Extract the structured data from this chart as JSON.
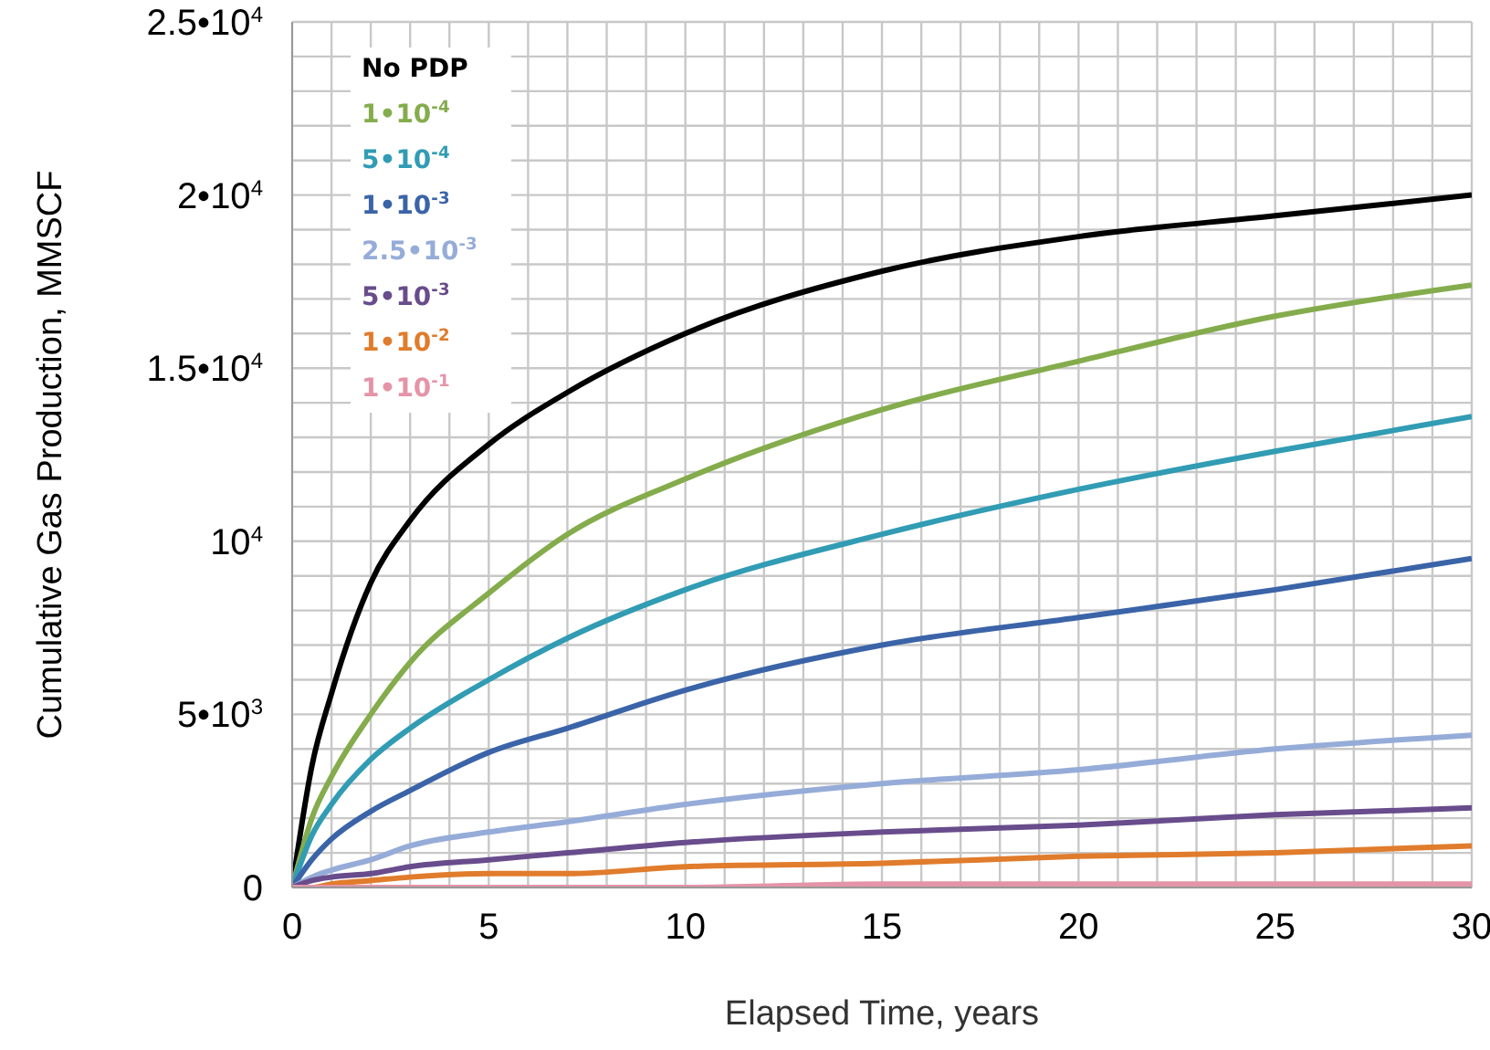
{
  "chart_data": {
    "type": "line",
    "xlabel": "Elapsed Time, years",
    "ylabel": "Cumulative Gas Production, MMSCF",
    "x": [
      0,
      0.5,
      1,
      2,
      3,
      5,
      7,
      10,
      15,
      20,
      25,
      30
    ],
    "series": [
      {
        "name": "No PDP",
        "color": "#000000",
        "values": [
          0,
          3500,
          5600,
          8800,
          10600,
          12800,
          14300,
          16000,
          17800,
          18800,
          19400,
          20000
        ]
      },
      {
        "name": "1•10$^{-4}$",
        "color": "#84ac4c",
        "values": [
          0,
          2000,
          3200,
          5000,
          6500,
          8500,
          10200,
          11800,
          13800,
          15200,
          16500,
          17400
        ]
      },
      {
        "name": "5•10$^{-4}$",
        "color": "#319cb4",
        "values": [
          0,
          1500,
          2400,
          3700,
          4600,
          6000,
          7200,
          8600,
          10200,
          11500,
          12600,
          13600
        ]
      },
      {
        "name": "1•10$^{-3}$",
        "color": "#3b64a8",
        "values": [
          0,
          800,
          1400,
          2200,
          2800,
          3900,
          4600,
          5700,
          7000,
          7800,
          8600,
          9500
        ]
      },
      {
        "name": "2.5•10$^{-3}$",
        "color": "#96acd8",
        "values": [
          0,
          300,
          500,
          800,
          1200,
          1600,
          1900,
          2400,
          3000,
          3400,
          4000,
          4400
        ]
      },
      {
        "name": "5•10$^{-3}$",
        "color": "#684c8c",
        "values": [
          0,
          200,
          300,
          400,
          600,
          800,
          1000,
          1300,
          1600,
          1800,
          2100,
          2300
        ]
      },
      {
        "name": "1•10$^{-2}$",
        "color": "#e07c2c",
        "values": [
          0,
          0,
          100,
          200,
          300,
          400,
          400,
          600,
          700,
          900,
          1000,
          1200
        ]
      },
      {
        "name": "1•10$^{-1}$",
        "color": "#e594a8",
        "values": [
          0,
          0,
          0,
          0,
          0,
          0,
          0,
          0,
          100,
          100,
          100,
          100
        ]
      }
    ],
    "xlim": [
      0,
      30
    ],
    "xticks": [
      0,
      {
        "value": 1,
        "label": null
      },
      {
        "value": 2,
        "label": null
      },
      {
        "value": 3,
        "label": null
      },
      {
        "value": 4,
        "label": null
      },
      5,
      {
        "value": 6,
        "label": null
      },
      {
        "value": 7,
        "label": null
      },
      {
        "value": 8,
        "label": null
      },
      {
        "value": 9,
        "label": null
      },
      10,
      {
        "value": 11,
        "label": null
      },
      {
        "value": 12,
        "label": null
      },
      {
        "value": 13,
        "label": null
      },
      {
        "value": 14,
        "label": null
      },
      15,
      {
        "value": 16,
        "label": null
      },
      {
        "value": 17,
        "label": null
      },
      {
        "value": 18,
        "label": null
      },
      {
        "value": 19,
        "label": null
      },
      20,
      {
        "value": 21,
        "label": null
      },
      {
        "value": 22,
        "label": null
      },
      {
        "value": 23,
        "label": null
      },
      {
        "value": 24,
        "label": null
      },
      25,
      {
        "value": 26,
        "label": null
      },
      {
        "value": 27,
        "label": null
      },
      {
        "value": 28,
        "label": null
      },
      {
        "value": 29,
        "label": null
      },
      30
    ],
    "ylim": [
      0,
      25000
    ],
    "yticks": [
      {
        "value": 0,
        "label": "0"
      },
      {
        "value": 1000,
        "label": null
      },
      {
        "value": 2000,
        "label": null
      },
      {
        "value": 3000,
        "label": null
      },
      {
        "value": 4000,
        "label": null
      },
      {
        "value": 5000,
        "label": "5•10$^{3}$"
      },
      {
        "value": 6000,
        "label": null
      },
      {
        "value": 7000,
        "label": null
      },
      {
        "value": 8000,
        "label": null
      },
      {
        "value": 9000,
        "label": null
      },
      {
        "value": 10000,
        "label": "10$^{4}$"
      },
      {
        "value": 11000,
        "label": null
      },
      {
        "value": 12000,
        "label": null
      },
      {
        "value": 13000,
        "label": null
      },
      {
        "value": 14000,
        "label": null
      },
      {
        "value": 15000,
        "label": "1.5•10$^{4}$"
      },
      {
        "value": 16000,
        "label": null
      },
      {
        "value": 17000,
        "label": null
      },
      {
        "value": 18000,
        "label": null
      },
      {
        "value": 19000,
        "label": null
      },
      {
        "value": 20000,
        "label": "2•10$^{4}$"
      },
      {
        "value": 21000,
        "label": null
      },
      {
        "value": 22000,
        "label": null
      },
      {
        "value": 23000,
        "label": null
      },
      {
        "value": 24000,
        "label": null
      },
      {
        "value": 25000,
        "label": "2.5•10$^{4}$"
      }
    ],
    "grid": true,
    "legend": "top left",
    "marker": "none",
    "line_style": "solid"
  }
}
